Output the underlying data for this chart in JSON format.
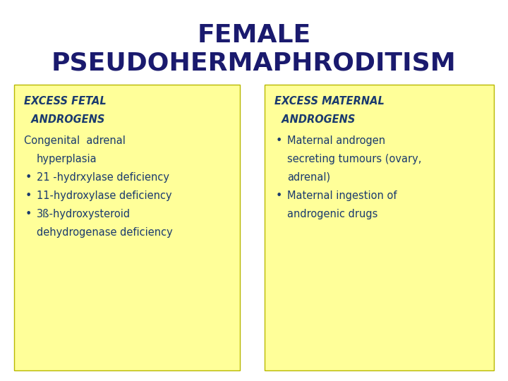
{
  "title_line1": "FEMALE",
  "title_line2": "PSEUDOHERMAPHRODITISM",
  "title_color": "#1a1a6e",
  "title_fontsize": 26,
  "background_color": "#ffffff",
  "box_color": "#ffff99",
  "box_edge_color": "#b8b800",
  "text_color": "#1a3a6e",
  "left_box": {
    "header_line1": "EXCESS FETAL",
    "header_line2": "  ANDROGENS",
    "body": [
      {
        "type": "plain",
        "indent": 0,
        "text": "Congenital  adrenal"
      },
      {
        "type": "plain",
        "indent": 1,
        "text": "hyperplasia"
      },
      {
        "type": "bullet",
        "text": "21 -hydrxylase deficiency"
      },
      {
        "type": "bullet",
        "text": "11-hydroxylase deficiency"
      },
      {
        "type": "bullet",
        "text": "3ß-hydroxysteroid"
      },
      {
        "type": "plain",
        "indent": 1,
        "text": "dehydrogenase deficiency"
      }
    ]
  },
  "right_box": {
    "header_line1": "EXCESS MATERNAL",
    "header_line2": "  ANDROGENS",
    "body": [
      {
        "type": "bullet",
        "text": "Maternal androgen"
      },
      {
        "type": "plain",
        "indent": 1,
        "text": "secreting tumours (ovary,"
      },
      {
        "type": "plain",
        "indent": 1,
        "text": "adrenal)"
      },
      {
        "type": "bullet",
        "text": "Maternal ingestion of"
      },
      {
        "type": "plain",
        "indent": 1,
        "text": "androgenic drugs"
      }
    ]
  }
}
